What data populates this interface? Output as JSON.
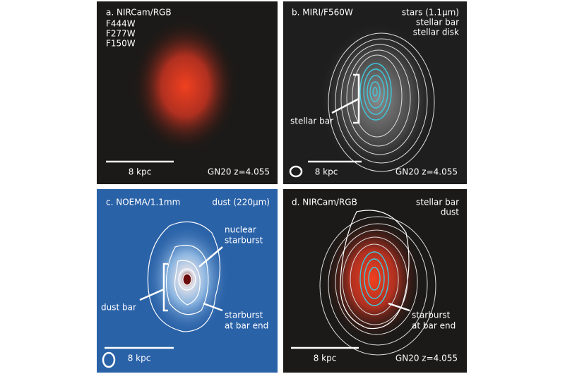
{
  "panels": [
    {
      "title": "a. NIRCam/RGB",
      "legend": [
        {
          "text": "F444W",
          "color": "#e23a2c"
        },
        {
          "text": "F277W",
          "color": "#3fb83a"
        },
        {
          "text": "F150W",
          "color": "#3a7ae0"
        }
      ],
      "scale_bar": "8 kpc",
      "target": "GN20 z=4.055"
    },
    {
      "title": "b. MIRI/F560W",
      "legend": [
        {
          "text": "stars (1.1μm)",
          "color": "#ffffff"
        },
        {
          "text": "stellar bar",
          "color": "#3fc8dc"
        },
        {
          "text": "stellar disk",
          "color": "#9a9a9a"
        }
      ],
      "annotations": [
        {
          "lines": [
            "stellar bar"
          ]
        }
      ],
      "scale_bar": "8 kpc",
      "target": "GN20 z=4.055"
    },
    {
      "title": "c. NOEMA/1.1mm",
      "legend": [
        {
          "text": "dust (220μm)",
          "color": "#ffffff"
        }
      ],
      "annotations": [
        {
          "lines": [
            "nuclear",
            "starburst"
          ]
        },
        {
          "lines": [
            "dust bar"
          ]
        },
        {
          "lines": [
            "starburst",
            "at bar end"
          ]
        }
      ],
      "scale_bar": "8 kpc"
    },
    {
      "title": "d. NIRCam/RGB",
      "legend": [
        {
          "text": "stellar bar",
          "color": "#3fc8dc"
        },
        {
          "text": "dust",
          "color": "#ffffff"
        }
      ],
      "annotations": [
        {
          "lines": [
            "starburst",
            "at bar end"
          ]
        }
      ],
      "scale_bar": "8 kpc",
      "target": "GN20 z=4.055"
    }
  ]
}
